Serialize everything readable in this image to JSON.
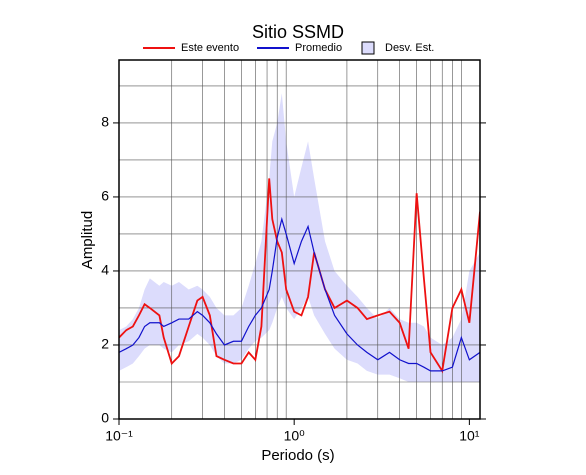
{
  "chart_data": {
    "type": "line",
    "title": "Sitio SSMD",
    "x_label": "Periodo (s)",
    "y_label": "Amplitud",
    "log_x": true,
    "grid": true,
    "xlim": [
      0.1,
      11.5
    ],
    "ylim": [
      0,
      9.7
    ],
    "xticks": [
      {
        "value": 0.1,
        "label": "10⁻¹"
      },
      {
        "value": 1,
        "label": "10⁰"
      },
      {
        "value": 10,
        "label": "10¹"
      }
    ],
    "x_gridlines": [
      0.2,
      0.3,
      0.4,
      0.5,
      0.6,
      0.7,
      0.8,
      0.9,
      2,
      3,
      4,
      5,
      6,
      7,
      8,
      9
    ],
    "yticks": [
      0,
      2,
      4,
      6,
      8
    ],
    "y_gridlines": [
      1,
      2,
      3,
      4,
      5,
      6,
      7,
      8,
      9
    ],
    "x": [
      0.1,
      0.11,
      0.12,
      0.13,
      0.14,
      0.15,
      0.17,
      0.18,
      0.2,
      0.22,
      0.25,
      0.28,
      0.3,
      0.33,
      0.36,
      0.4,
      0.45,
      0.5,
      0.55,
      0.6,
      0.65,
      0.72,
      0.75,
      0.8,
      0.85,
      0.9,
      1.0,
      1.1,
      1.2,
      1.3,
      1.5,
      1.7,
      2.0,
      2.3,
      2.6,
      3.0,
      3.5,
      4.0,
      4.5,
      5.0,
      5.5,
      6.0,
      7.0,
      8.0,
      9.0,
      10,
      11.5
    ],
    "series": [
      {
        "name": "Este evento",
        "color": "#ee1111",
        "values": [
          2.2,
          2.4,
          2.5,
          2.8,
          3.1,
          3.0,
          2.8,
          2.2,
          1.5,
          1.7,
          2.5,
          3.2,
          3.3,
          2.8,
          1.7,
          1.6,
          1.5,
          1.5,
          1.8,
          1.6,
          2.5,
          6.5,
          5.4,
          4.8,
          4.5,
          3.5,
          2.9,
          2.8,
          3.3,
          4.5,
          3.5,
          3.0,
          3.2,
          3.0,
          2.7,
          2.8,
          2.9,
          2.6,
          1.9,
          6.1,
          3.8,
          1.8,
          1.3,
          3.0,
          3.5,
          2.6,
          5.6
        ]
      },
      {
        "name": "Promedio",
        "color": "#1111cc",
        "values": [
          1.8,
          1.9,
          2.0,
          2.2,
          2.5,
          2.6,
          2.6,
          2.5,
          2.6,
          2.7,
          2.7,
          2.9,
          2.8,
          2.6,
          2.3,
          2.0,
          2.1,
          2.1,
          2.5,
          2.8,
          3.0,
          3.5,
          4.0,
          4.9,
          5.4,
          5.0,
          4.2,
          4.8,
          5.2,
          4.5,
          3.5,
          2.8,
          2.3,
          2.0,
          1.8,
          1.6,
          1.8,
          1.6,
          1.5,
          1.5,
          1.4,
          1.3,
          1.3,
          1.4,
          2.2,
          1.6,
          1.8
        ]
      },
      {
        "name": "Desv. Est.",
        "color": "#dcdcfc",
        "band": true,
        "lower": [
          1.3,
          1.4,
          1.5,
          1.7,
          1.9,
          2.0,
          2.0,
          1.9,
          1.8,
          2.0,
          2.1,
          2.3,
          2.2,
          2.0,
          1.7,
          1.5,
          1.5,
          1.6,
          1.9,
          2.1,
          2.2,
          2.4,
          2.6,
          3.0,
          3.3,
          3.0,
          2.7,
          3.0,
          3.3,
          2.8,
          2.3,
          1.9,
          1.6,
          1.5,
          1.3,
          1.2,
          1.2,
          1.1,
          1.0,
          1.0,
          1.0,
          1.0,
          1.0,
          1.0,
          1.0,
          1.0,
          1.0
        ],
        "upper": [
          2.4,
          2.5,
          2.7,
          3.0,
          3.5,
          3.8,
          3.6,
          3.7,
          3.6,
          3.7,
          3.5,
          3.6,
          3.5,
          3.3,
          3.0,
          2.8,
          2.8,
          3.0,
          3.6,
          4.2,
          4.8,
          6.5,
          7.5,
          8.0,
          8.8,
          7.5,
          6.0,
          6.8,
          7.5,
          6.5,
          4.8,
          4.0,
          3.6,
          3.3,
          3.0,
          2.7,
          3.0,
          2.7,
          2.6,
          2.6,
          2.5,
          2.2,
          2.0,
          2.2,
          2.7,
          4.0,
          4.5
        ]
      }
    ]
  }
}
